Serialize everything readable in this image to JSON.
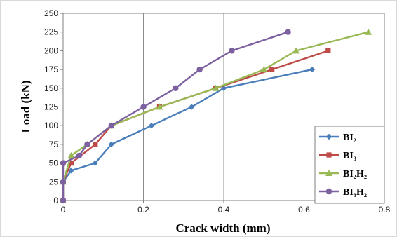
{
  "chart_data": {
    "type": "line",
    "xlabel": "Crack width (mm)",
    "ylabel": "Load (kN)",
    "xlim": [
      0,
      0.8
    ],
    "ylim": [
      0,
      250
    ],
    "x_ticks": [
      "0",
      "0.2",
      "0.4",
      "0.6",
      "0.8"
    ],
    "y_ticks": [
      "0",
      "25",
      "50",
      "75",
      "100",
      "125",
      "150",
      "175",
      "200",
      "225",
      "250"
    ],
    "grid": "vertical",
    "legend_position": "bottom-right",
    "series": [
      {
        "name": "BI₂",
        "color": "#4a7ebb",
        "marker": "diamond",
        "points": [
          [
            0,
            0
          ],
          [
            0,
            25
          ],
          [
            0.02,
            40
          ],
          [
            0.08,
            50
          ],
          [
            0.12,
            75
          ],
          [
            0.22,
            100
          ],
          [
            0.32,
            125
          ],
          [
            0.4,
            150
          ],
          [
            0.62,
            175
          ]
        ]
      },
      {
        "name": "BI₃",
        "color": "#be4b48",
        "marker": "square",
        "points": [
          [
            0,
            0
          ],
          [
            0,
            25
          ],
          [
            0.02,
            50
          ],
          [
            0.08,
            75
          ],
          [
            0.12,
            100
          ],
          [
            0.24,
            125
          ],
          [
            0.38,
            150
          ],
          [
            0.52,
            175
          ],
          [
            0.66,
            200
          ]
        ]
      },
      {
        "name": "BI₂H₂",
        "color": "#98b954",
        "marker": "triangle",
        "points": [
          [
            0,
            0
          ],
          [
            0,
            25
          ],
          [
            0.02,
            60
          ],
          [
            0.06,
            75
          ],
          [
            0.12,
            100
          ],
          [
            0.24,
            125
          ],
          [
            0.38,
            150
          ],
          [
            0.5,
            175
          ],
          [
            0.58,
            200
          ],
          [
            0.76,
            225
          ]
        ]
      },
      {
        "name": "BI₃H₂",
        "color": "#7d60a0",
        "marker": "circle",
        "points": [
          [
            0,
            0
          ],
          [
            0,
            25
          ],
          [
            0,
            50
          ],
          [
            0.04,
            60
          ],
          [
            0.06,
            75
          ],
          [
            0.12,
            100
          ],
          [
            0.2,
            125
          ],
          [
            0.28,
            150
          ],
          [
            0.34,
            175
          ],
          [
            0.42,
            200
          ],
          [
            0.56,
            225
          ]
        ]
      }
    ]
  }
}
